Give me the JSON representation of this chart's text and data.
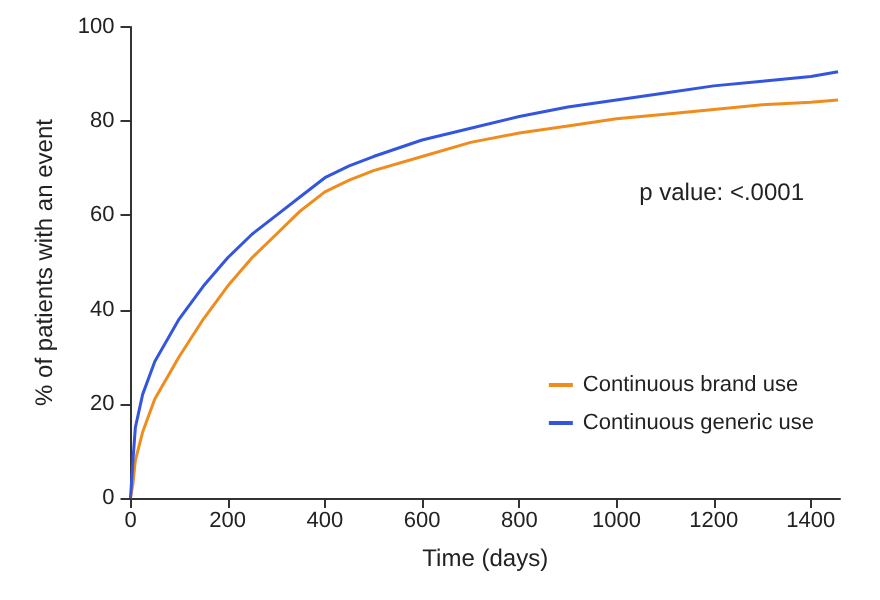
{
  "chart_data": {
    "type": "line",
    "xlabel": "Time (days)",
    "ylabel": "% of patients with an event",
    "annotations": [
      "p value: <.0001"
    ],
    "xlim": [
      0,
      1460
    ],
    "xticks": [
      0,
      200,
      400,
      600,
      800,
      1000,
      1200,
      1400
    ],
    "ylim": [
      0,
      100
    ],
    "yticks": [
      0,
      20,
      40,
      60,
      80,
      100
    ],
    "grid": false,
    "legend": "bottom right",
    "marker": "none",
    "line_style": "solid",
    "series": [
      {
        "name": "Continuous brand use",
        "color": "#f08c1e",
        "x": [
          0,
          5,
          10,
          25,
          50,
          100,
          150,
          200,
          250,
          300,
          350,
          400,
          450,
          500,
          600,
          700,
          800,
          900,
          1000,
          1100,
          1200,
          1300,
          1400,
          1456
        ],
        "values": [
          0,
          3,
          8,
          14,
          21,
          30,
          38,
          45,
          51,
          56,
          61,
          65,
          67.5,
          69.5,
          72.5,
          75.5,
          77.5,
          79,
          80.5,
          81.5,
          82.5,
          83.5,
          84,
          84.5
        ]
      },
      {
        "name": "Continuous generic use",
        "color": "#3355e0",
        "x": [
          0,
          5,
          10,
          25,
          50,
          100,
          150,
          200,
          250,
          300,
          350,
          400,
          450,
          500,
          600,
          700,
          800,
          900,
          1000,
          1100,
          1200,
          1300,
          1400,
          1456
        ],
        "values": [
          0,
          8,
          15,
          22,
          29,
          38,
          45,
          51,
          56,
          60,
          64,
          68,
          70.5,
          72.5,
          76,
          78.5,
          81,
          83,
          84.5,
          86,
          87.5,
          88.5,
          89.5,
          90.5
        ]
      }
    ]
  }
}
